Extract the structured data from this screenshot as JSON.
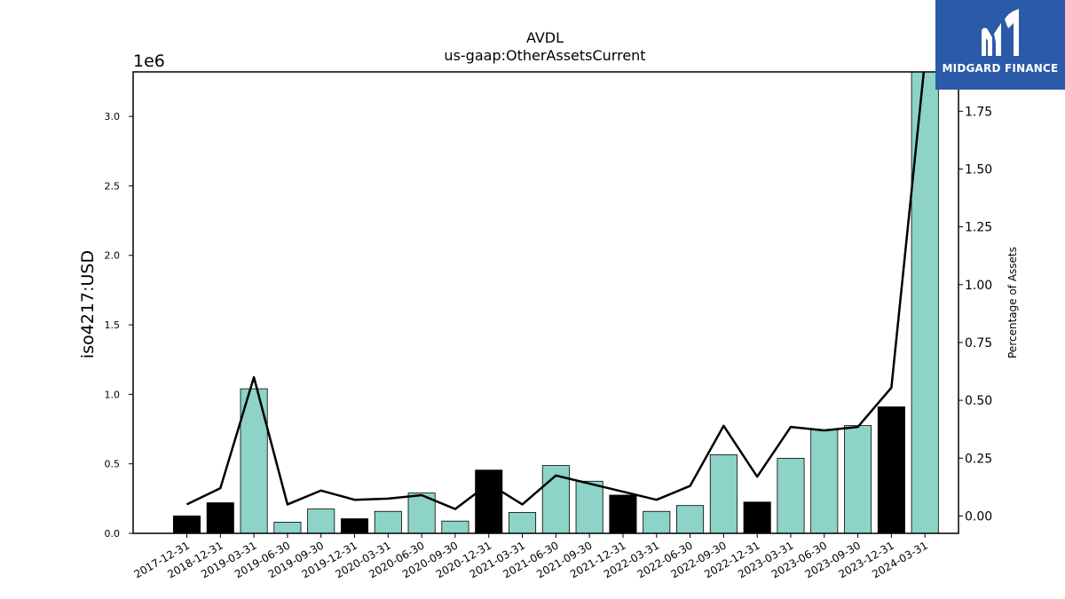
{
  "chart_data": {
    "type": "bar",
    "title": "AVDL",
    "subtitle": "us-gaap:OtherAssetsCurrent",
    "ylabel": "iso4217:USD",
    "y_offset_label": "1e6",
    "y2label": "Percentage of Assets",
    "ylim": [
      0,
      3320000
    ],
    "y2lim": [
      -0.075,
      1.92
    ],
    "yticks": [
      0.0,
      0.5,
      1.0,
      1.5,
      2.0,
      2.5,
      3.0
    ],
    "y2ticks": [
      0.0,
      0.25,
      0.5,
      0.75,
      1.0,
      1.25,
      1.5,
      1.75
    ],
    "grid": false,
    "categories": [
      "2017-12-31",
      "2018-12-31",
      "2019-03-31",
      "2019-06-30",
      "2019-09-30",
      "2019-12-31",
      "2020-03-31",
      "2020-06-30",
      "2020-09-30",
      "2020-12-31",
      "2021-03-31",
      "2021-06-30",
      "2021-09-30",
      "2021-12-31",
      "2022-03-31",
      "2022-06-30",
      "2022-09-30",
      "2022-12-31",
      "2023-03-31",
      "2023-06-30",
      "2023-09-30",
      "2023-12-31",
      "2024-03-31"
    ],
    "series": [
      {
        "type": "bar",
        "values": [
          125000,
          220000,
          1040000,
          80000,
          175000,
          105000,
          158000,
          290000,
          88000,
          455000,
          150000,
          488000,
          375000,
          275000,
          158000,
          200000,
          565000,
          225000,
          540000,
          745000,
          775000,
          910000,
          3320000
        ],
        "colors": [
          "#000000",
          "#000000",
          "#8dd3c7",
          "#8dd3c7",
          "#8dd3c7",
          "#000000",
          "#8dd3c7",
          "#8dd3c7",
          "#8dd3c7",
          "#000000",
          "#8dd3c7",
          "#8dd3c7",
          "#8dd3c7",
          "#000000",
          "#8dd3c7",
          "#8dd3c7",
          "#8dd3c7",
          "#000000",
          "#8dd3c7",
          "#8dd3c7",
          "#8dd3c7",
          "#000000",
          "#8dd3c7"
        ]
      },
      {
        "type": "line",
        "axis": "right",
        "values": [
          0.05,
          0.12,
          0.6,
          0.05,
          0.11,
          0.07,
          0.075,
          0.09,
          0.03,
          0.14,
          0.05,
          0.175,
          0.14,
          0.105,
          0.07,
          0.13,
          0.39,
          0.17,
          0.385,
          0.37,
          0.385,
          0.555,
          1.97
        ],
        "color": "#000000"
      }
    ]
  },
  "logo": {
    "text": "MIDGARD FINANCE",
    "color": "#2b5aa9"
  }
}
